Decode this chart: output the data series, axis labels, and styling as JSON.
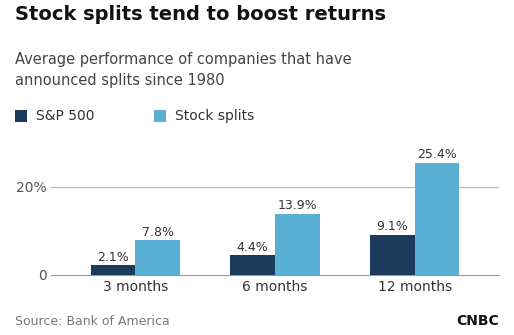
{
  "title": "Stock splits tend to boost returns",
  "subtitle": "Average performance of companies that have\nannounced splits since 1980",
  "source": "Source: Bank of America",
  "categories": [
    "3 months",
    "6 months",
    "12 months"
  ],
  "sp500_values": [
    2.1,
    4.4,
    9.1
  ],
  "split_values": [
    7.8,
    13.9,
    25.4
  ],
  "sp500_labels": [
    "2.1%",
    "4.4%",
    "9.1%"
  ],
  "split_labels": [
    "7.8%",
    "13.9%",
    "25.4%"
  ],
  "sp500_color": "#1b3a5c",
  "split_color": "#5aafd4",
  "ylim": [
    0,
    29
  ],
  "ytick_val": 20,
  "background_color": "#ffffff",
  "legend_labels": [
    "S&P 500",
    "Stock splits"
  ],
  "bar_width": 0.32,
  "title_fontsize": 14,
  "subtitle_fontsize": 10.5,
  "label_fontsize": 9,
  "legend_fontsize": 10,
  "axis_label_fontsize": 10,
  "source_fontsize": 9,
  "title_color": "#111111",
  "subtitle_color": "#444444",
  "source_color": "#777777",
  "tick_color": "#555555",
  "gridline_color": "#bbbbbb",
  "spine_color": "#999999"
}
